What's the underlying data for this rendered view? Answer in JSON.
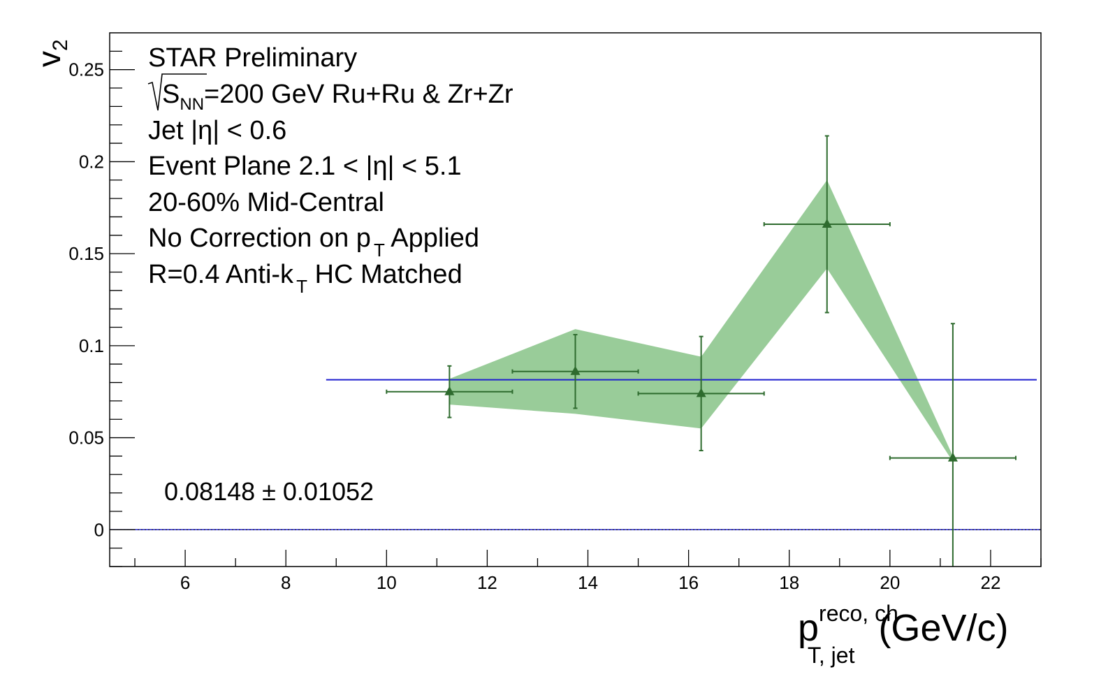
{
  "chart_data": {
    "type": "scatter",
    "xlabel": {
      "symbol": "p",
      "superscript": "reco, ch",
      "subscript": "T, jet",
      "unit": "(GeV/c)"
    },
    "ylabel": {
      "symbol": "v",
      "subscript": "2"
    },
    "xlim": [
      4.5,
      23
    ],
    "ylim": [
      -0.02,
      0.27
    ],
    "x_ticks": [
      6,
      8,
      10,
      12,
      14,
      16,
      18,
      20,
      22
    ],
    "x_tick_labels": [
      "6",
      "8",
      "10",
      "12",
      "14",
      "16",
      "18",
      "20",
      "22"
    ],
    "y_ticks": [
      0,
      0.05,
      0.1,
      0.15,
      0.2,
      0.25
    ],
    "y_tick_labels": [
      "0",
      "0.05",
      "0.1",
      "0.15",
      "0.2",
      "0.25"
    ],
    "grid": false,
    "annotations": [
      {
        "text": "STAR Preliminary"
      },
      {
        "text": "=200 GeV Ru+Ru & Zr+Zr",
        "prefix_root": "S",
        "prefix_sub": "NN"
      },
      {
        "text": "Jet |η| < 0.6"
      },
      {
        "text": "Event Plane 2.1 < |η| < 5.1"
      },
      {
        "text": "20-60% Mid-Central"
      },
      {
        "text": "No Correction on p",
        "sub": "T",
        "suffix": " Applied"
      },
      {
        "text": "R=0.4 Anti-k",
        "sub": "T",
        "suffix": " HC Matched"
      }
    ],
    "fit_text": "0.08148 ± 0.01052",
    "fit_line": {
      "value": 0.08148,
      "x_range": [
        8.8,
        23
      ],
      "color": "#1f1fcf"
    },
    "zero_line": {
      "value": 0,
      "color": "#1f1fcf"
    },
    "series": [
      {
        "marker": "triangle",
        "color": "#2e6b2e",
        "x": [
          11.25,
          13.75,
          16.25,
          18.75,
          21.25
        ],
        "y": [
          0.075,
          0.086,
          0.074,
          0.166,
          0.039
        ],
        "x_err": [
          1.25,
          1.25,
          1.25,
          1.25,
          1.25
        ],
        "y_err": [
          0.014,
          0.02,
          0.031,
          0.048,
          0.073
        ]
      }
    ],
    "systematic_band": {
      "color": "#99cc99",
      "x": [
        11.25,
        13.75,
        16.25,
        18.75,
        21.25
      ],
      "upper": [
        0.082,
        0.109,
        0.094,
        0.19,
        0.04
      ],
      "lower": [
        0.068,
        0.063,
        0.055,
        0.142,
        0.037
      ]
    }
  }
}
